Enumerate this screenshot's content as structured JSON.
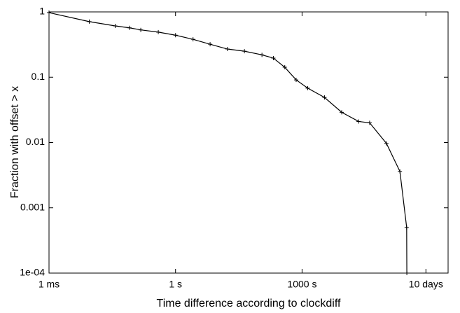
{
  "chart_data": {
    "type": "line",
    "xlabel": "Time difference according to clockdiff",
    "ylabel": "Fraction with offset > x",
    "x": [
      0.001,
      0.009,
      0.037,
      0.081,
      0.15,
      0.39,
      1,
      2.6,
      6.6,
      17,
      43,
      112,
      209,
      389,
      724,
      1360,
      3400,
      8700,
      21900,
      40000,
      100000,
      209000,
      302000,
      305000
    ],
    "values": [
      0.975,
      0.71,
      0.61,
      0.57,
      0.53,
      0.49,
      0.44,
      0.38,
      0.32,
      0.27,
      0.25,
      0.22,
      0.196,
      0.142,
      0.091,
      0.068,
      0.049,
      0.029,
      0.021,
      0.02,
      0.0097,
      0.0036,
      0.0005,
      0.0001
    ],
    "color": "#000000",
    "xscale": "log",
    "yscale": "log",
    "xlim": [
      0.001,
      2900000
    ],
    "ylim": [
      0.0001,
      1
    ],
    "xticks": [
      {
        "value": 0.001,
        "label": "1 ms"
      },
      {
        "value": 1,
        "label": "1 s"
      },
      {
        "value": 1000,
        "label": "1000 s"
      },
      {
        "value": 864000,
        "label": "10 days"
      }
    ],
    "yticks": [
      {
        "value": 0.0001,
        "label": "1e-04"
      },
      0.001,
      0.01,
      0.1,
      1
    ]
  }
}
